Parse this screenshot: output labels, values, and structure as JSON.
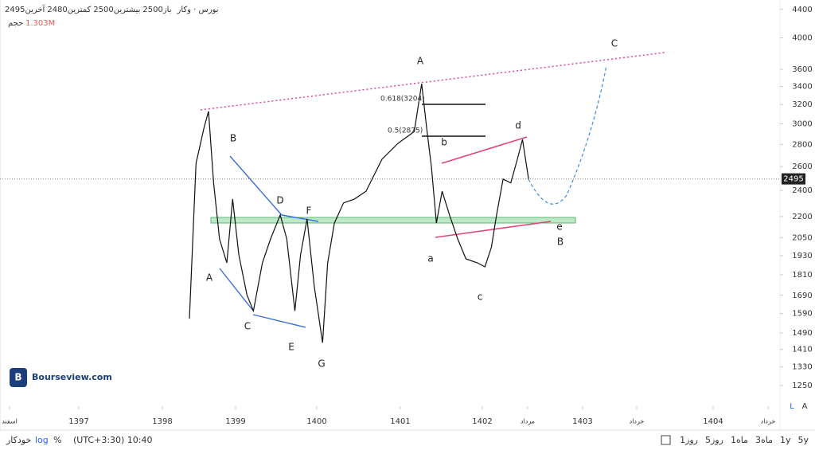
{
  "header": {
    "symbol": "بورس · وکار",
    "stats": [
      {
        "label": "باز",
        "value": "2500"
      },
      {
        "label": "بیشترین",
        "value": "2500"
      },
      {
        "label": "کمترین",
        "value": "2480"
      },
      {
        "label": "آخرین",
        "value": "2495"
      }
    ],
    "volume_label": "حجم",
    "volume_value": "1.303M"
  },
  "watermark": "Bourseview.com",
  "toolbar": {
    "ranges": [
      "5y",
      "1y",
      "3ماه",
      "1ماه",
      "5روز",
      "1روز"
    ],
    "timezone": "(UTC+3:30) 10:40",
    "percent": "%",
    "log": "log",
    "auto": "خودکار",
    "scale_l": "L",
    "scale_a": "A"
  },
  "chart_data": {
    "type": "line",
    "log_scale": true,
    "color": "#111111",
    "last_price": 2495,
    "ylim": [
      1166,
      4540
    ],
    "yticks": [
      1250,
      1330,
      1410,
      1490,
      1590,
      1690,
      1810,
      1930,
      2050,
      2200,
      2400,
      2600,
      2800,
      3000,
      3200,
      3400,
      3600,
      4000,
      4400
    ],
    "xticks": [
      {
        "value": 1396.92,
        "label": "اسفند"
      },
      1397,
      1398,
      1399,
      1400,
      1401,
      1402,
      {
        "value": 1402.35,
        "label": "مرداد"
      },
      1403,
      {
        "value": 1403.2,
        "label": "خرداد"
      },
      1404,
      {
        "value": 1404.2,
        "label": "خرداد"
      }
    ],
    "x": [
      1398.37,
      1398.46,
      1398.57,
      1398.63,
      1398.7,
      1398.78,
      1398.88,
      1398.96,
      1399.04,
      1399.14,
      1399.22,
      1399.33,
      1399.43,
      1399.55,
      1399.63,
      1399.73,
      1399.8,
      1399.88,
      1399.97,
      1400.07,
      1400.13,
      1400.21,
      1400.32,
      1400.45,
      1400.59,
      1400.78,
      1400.97,
      1401.17,
      1401.26,
      1401.32,
      1401.38,
      1401.44,
      1401.51,
      1401.6,
      1401.7,
      1401.8,
      1401.94,
      1402.02,
      1402.07,
      1402.11,
      1402.16,
      1402.22,
      1402.27,
      1402.31,
      1402.36
    ],
    "values": [
      1563,
      2628,
      2963,
      3128,
      2461,
      2041,
      1884,
      2332,
      1934,
      1692,
      1604,
      1884,
      2041,
      2211,
      2041,
      1604,
      1934,
      2183,
      1740,
      1442,
      1884,
      2152,
      2302,
      2332,
      2394,
      2664,
      2809,
      2924,
      3430,
      2963,
      2595,
      2152,
      2394,
      2211,
      2041,
      1909,
      1884,
      1859,
      1985,
      2211,
      2493,
      2461,
      2664,
      2847,
      2495
    ],
    "annotations": [
      "A",
      "C",
      "B",
      "D",
      "F",
      "A",
      "C",
      "E",
      "G",
      "a",
      "b",
      "c",
      "d",
      "e",
      "B",
      "0.618(3204)",
      "0.5(2875)"
    ]
  }
}
